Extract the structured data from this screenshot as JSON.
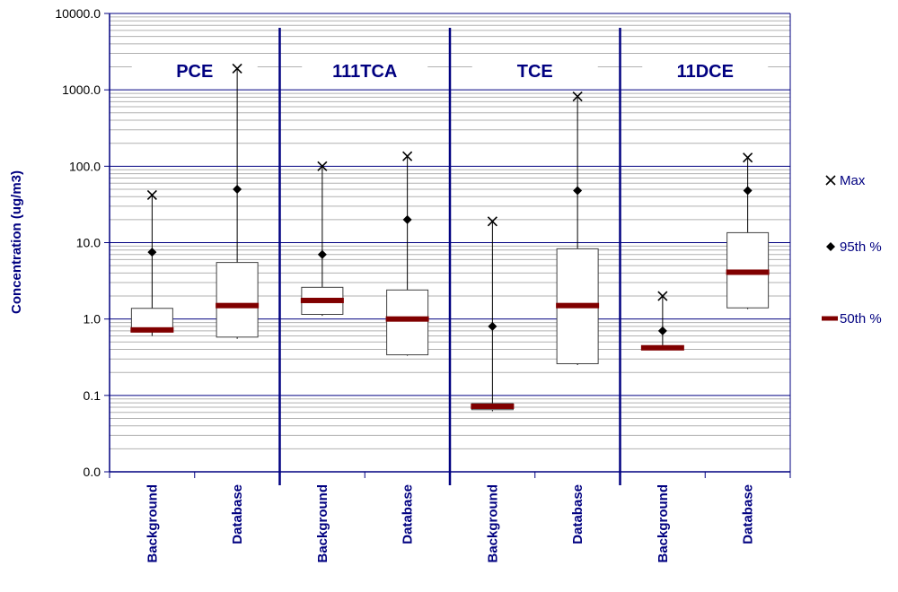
{
  "chart_data": {
    "type": "box",
    "ylabel": "Concentration (ug/m3)",
    "yscale": "log",
    "ylim": [
      0.01,
      10000
    ],
    "ytick_labels": [
      "0.0",
      "0.1",
      "1.0",
      "10.0",
      "100.0",
      "1000.0",
      "10000.0"
    ],
    "ytick_values": [
      0.01,
      0.1,
      1,
      10,
      100,
      1000,
      10000
    ],
    "grid": true,
    "legend": {
      "position": "right",
      "entries": [
        {
          "key": "max",
          "label": "Max",
          "marker": "x"
        },
        {
          "key": "p95",
          "label": "95th %",
          "marker": "diamond"
        },
        {
          "key": "p50",
          "label": "50th %",
          "marker": "dash"
        }
      ]
    },
    "colors": {
      "axis": "#000080",
      "major_grid": "#000080",
      "minor_grid": "#b0b0b0",
      "median": "#800000",
      "marker": "#000000",
      "label": "#000080"
    },
    "groups": [
      {
        "name": "PCE",
        "categories": [
          {
            "label": "Background",
            "min": 0.6,
            "q1": 0.72,
            "p50": 0.72,
            "q3": 1.38,
            "p95": 7.5,
            "max": 42
          },
          {
            "label": "Database",
            "min": 0.55,
            "q1": 0.58,
            "p50": 1.5,
            "q3": 5.5,
            "p95": 50,
            "max": 1900
          }
        ]
      },
      {
        "name": "111TCA",
        "categories": [
          {
            "label": "Background",
            "min": 1.1,
            "q1": 1.15,
            "p50": 1.75,
            "q3": 2.6,
            "p95": 7,
            "max": 100
          },
          {
            "label": "Database",
            "min": 0.33,
            "q1": 0.34,
            "p50": 1.0,
            "q3": 2.4,
            "p95": 20,
            "max": 135
          }
        ]
      },
      {
        "name": "TCE",
        "categories": [
          {
            "label": "Background",
            "min": 0.062,
            "q1": 0.065,
            "p50": 0.072,
            "q3": 0.078,
            "p95": 0.8,
            "max": 19
          },
          {
            "label": "Database",
            "min": 0.25,
            "q1": 0.26,
            "p50": 1.5,
            "q3": 8.3,
            "p95": 48,
            "max": 820
          }
        ]
      },
      {
        "name": "11DCE",
        "categories": [
          {
            "label": "Background",
            "min": 0.4,
            "q1": 0.4,
            "p50": 0.42,
            "q3": 0.44,
            "p95": 0.7,
            "max": 2.0
          },
          {
            "label": "Database",
            "min": 1.35,
            "q1": 1.4,
            "p50": 4.1,
            "q3": 13.5,
            "p95": 48,
            "max": 130
          }
        ]
      }
    ]
  }
}
